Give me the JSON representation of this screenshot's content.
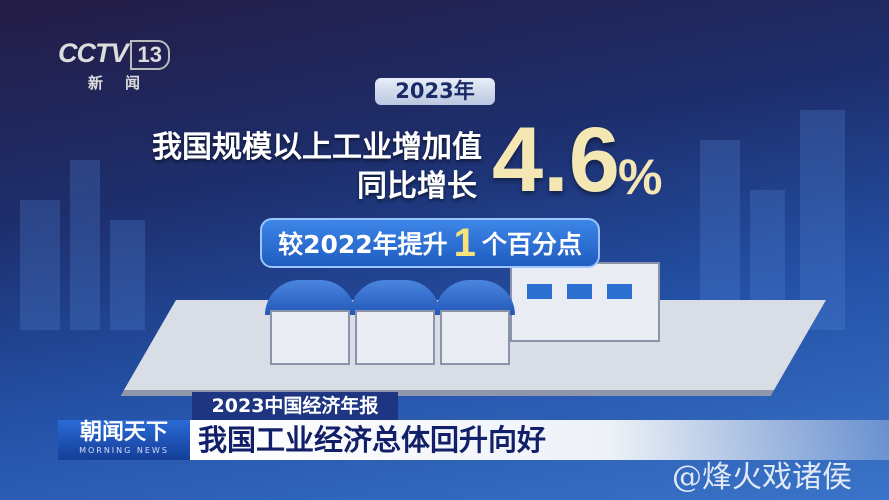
{
  "channel_logo": {
    "brand": "CCTV",
    "channel": "13",
    "subtitle": "新闻"
  },
  "infographic": {
    "year_badge": "2023年",
    "line1": "我国规模以上工业增加值",
    "line2": "同比增长",
    "value": "4.6",
    "unit": "%",
    "comparison": {
      "prefix": "较2022年提升",
      "number": "1",
      "suffix": "个百分点"
    }
  },
  "lower_third": {
    "tag": "2023中国经济年报",
    "show_name": "朝闻天下",
    "show_name_en": "MORNING NEWS",
    "headline": "我国工业经济总体回升向好"
  },
  "watermark": "@烽火戏诸侯",
  "colors": {
    "value_highlight": "#f4e7b4",
    "number_highlight": "#f8e27a",
    "tag_bg": "#1e3582",
    "headline_text": "#12206a"
  }
}
